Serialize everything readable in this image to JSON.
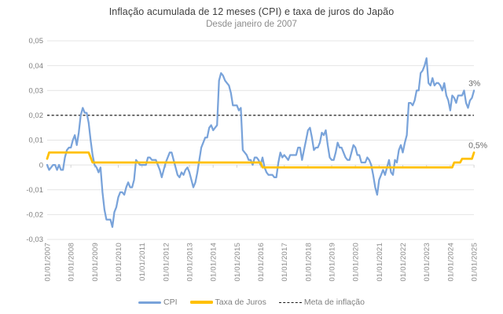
{
  "header": {
    "title": "Inflação acumulada de 12 meses (CPI) e taxa de juros do Japão",
    "subtitle": "Desde janeiro de 2007"
  },
  "chart_data": {
    "type": "line",
    "title": "Inflação acumulada de 12 meses (CPI) e taxa de juros do Japão",
    "subtitle": "Desde janeiro de 2007",
    "grid": true,
    "legend_position": "bottom",
    "ylim": [
      -0.03,
      0.05
    ],
    "y_ticks": [
      0.05,
      0.04,
      0.03,
      0.02,
      0.01,
      0,
      -0.01,
      -0.02,
      -0.03
    ],
    "y_tick_labels": [
      "0,05",
      "0,04",
      "0,03",
      "0,02",
      "0,01",
      "0",
      "-0,01",
      "-0,02",
      "-0,03"
    ],
    "x_tick_labels": [
      "01/01/2007",
      "01/01/2008",
      "01/01/2009",
      "01/01/2010",
      "01/01/2011",
      "01/01/2012",
      "01/01/2013",
      "01/01/2014",
      "01/01/2015",
      "01/01/2016",
      "01/01/2017",
      "01/01/2018",
      "01/01/2019",
      "01/01/2020",
      "01/01/2021",
      "01/01/2022",
      "01/01/2023",
      "01/01/2024",
      "01/01/2025"
    ],
    "x_start_month": "01/2007",
    "x_end_month": "01/2025",
    "colors": {
      "cpi": "#79A3DA",
      "rate": "#FFC000",
      "meta": "#1a1a1a",
      "gridline": "#e4e4e4",
      "tick_mark": "#d2d2d2"
    },
    "series": [
      {
        "name": "CPI",
        "color": "#79A3DA",
        "width": 2.25,
        "values": [
          0,
          -0.002,
          -0.001,
          0,
          0,
          -0.002,
          0,
          -0.002,
          -0.002,
          0.003,
          0.006,
          0.007,
          0.007,
          0.01,
          0.012,
          0.008,
          0.013,
          0.02,
          0.023,
          0.021,
          0.021,
          0.017,
          0.01,
          0.004,
          0,
          -0.001,
          -0.003,
          -0.001,
          -0.011,
          -0.018,
          -0.022,
          -0.022,
          -0.022,
          -0.025,
          -0.019,
          -0.017,
          -0.013,
          -0.011,
          -0.011,
          -0.012,
          -0.009,
          -0.007,
          -0.009,
          -0.009,
          -0.006,
          0.002,
          0.001,
          0,
          0,
          0,
          0,
          0.003,
          0.003,
          0.002,
          0.002,
          0.002,
          0,
          -0.002,
          -0.005,
          -0.002,
          0.001,
          0.003,
          0.005,
          0.005,
          0.002,
          -0.001,
          -0.004,
          -0.005,
          -0.003,
          -0.004,
          -0.002,
          -0.001,
          -0.003,
          -0.006,
          -0.009,
          -0.007,
          -0.003,
          0.002,
          0.007,
          0.009,
          0.011,
          0.011,
          0.015,
          0.016,
          0.014,
          0.015,
          0.016,
          0.034,
          0.037,
          0.036,
          0.034,
          0.033,
          0.032,
          0.029,
          0.024,
          0.024,
          0.024,
          0.022,
          0.023,
          0.006,
          0.005,
          0.004,
          0.002,
          0.002,
          0,
          0.003,
          0.003,
          0.002,
          0,
          0.003,
          -0.001,
          -0.003,
          -0.004,
          -0.004,
          -0.004,
          -0.005,
          -0.005,
          0.001,
          0.005,
          0.003,
          0.004,
          0.003,
          0.002,
          0.004,
          0.004,
          0.004,
          0.004,
          0.007,
          0.007,
          0.002,
          0.006,
          0.01,
          0.014,
          0.015,
          0.011,
          0.006,
          0.007,
          0.007,
          0.009,
          0.013,
          0.012,
          0.014,
          0.008,
          0.003,
          0.002,
          0.002,
          0.005,
          0.009,
          0.007,
          0.007,
          0.005,
          0.003,
          0.002,
          0.002,
          0.005,
          0.008,
          0.007,
          0.004,
          0.004,
          0.001,
          0.001,
          0.001,
          0.003,
          0.002,
          0,
          -0.004,
          -0.009,
          -0.012,
          -0.006,
          -0.004,
          -0.002,
          -0.004,
          -0.001,
          0.002,
          -0.003,
          -0.004,
          0.002,
          0.001,
          0.006,
          0.008,
          0.005,
          0.009,
          0.012,
          0.025,
          0.025,
          0.024,
          0.026,
          0.03,
          0.03,
          0.037,
          0.038,
          0.04,
          0.043,
          0.033,
          0.032,
          0.035,
          0.032,
          0.033,
          0.033,
          0.032,
          0.03,
          0.033,
          0.028,
          0.026,
          0.022,
          0.028,
          0.027,
          0.025,
          0.028,
          0.028,
          0.028,
          0.03,
          0.025,
          0.023,
          0.026,
          0.027,
          0.03
        ]
      },
      {
        "name": "Taxa de Juros",
        "color": "#FFC000",
        "width": 2.75,
        "values": [
          0.0025,
          0.005,
          0.005,
          0.005,
          0.005,
          0.005,
          0.005,
          0.005,
          0.005,
          0.005,
          0.005,
          0.005,
          0.005,
          0.005,
          0.005,
          0.005,
          0.005,
          0.005,
          0.005,
          0.005,
          0.005,
          0.005,
          0.003,
          0.001,
          0.001,
          0.001,
          0.001,
          0.001,
          0.001,
          0.001,
          0.001,
          0.001,
          0.001,
          0.001,
          0.001,
          0.001,
          0.001,
          0.001,
          0.001,
          0.001,
          0.001,
          0.001,
          0.001,
          0.001,
          0.001,
          0.001,
          0.001,
          0.001,
          0.001,
          0.001,
          0.001,
          0.001,
          0.001,
          0.001,
          0.001,
          0.001,
          0.001,
          0.001,
          0.001,
          0.001,
          0.001,
          0.001,
          0.001,
          0.001,
          0.001,
          0.001,
          0.001,
          0.001,
          0.001,
          0.001,
          0.001,
          0.001,
          0.001,
          0.001,
          0.001,
          0.001,
          0.001,
          0.001,
          0.001,
          0.001,
          0.001,
          0.001,
          0.001,
          0.001,
          0.001,
          0.001,
          0.001,
          0.001,
          0.001,
          0.001,
          0.001,
          0.001,
          0.001,
          0.001,
          0.001,
          0.001,
          0.001,
          0.001,
          0.001,
          0.001,
          0.001,
          0.001,
          0.001,
          0.001,
          0.001,
          0.001,
          0.001,
          0.001,
          0.001,
          -0.001,
          -0.001,
          -0.001,
          -0.001,
          -0.001,
          -0.001,
          -0.001,
          -0.001,
          -0.001,
          -0.001,
          -0.001,
          -0.001,
          -0.001,
          -0.001,
          -0.001,
          -0.001,
          -0.001,
          -0.001,
          -0.001,
          -0.001,
          -0.001,
          -0.001,
          -0.001,
          -0.001,
          -0.001,
          -0.001,
          -0.001,
          -0.001,
          -0.001,
          -0.001,
          -0.001,
          -0.001,
          -0.001,
          -0.001,
          -0.001,
          -0.001,
          -0.001,
          -0.001,
          -0.001,
          -0.001,
          -0.001,
          -0.001,
          -0.001,
          -0.001,
          -0.001,
          -0.001,
          -0.001,
          -0.001,
          -0.001,
          -0.001,
          -0.001,
          -0.001,
          -0.001,
          -0.001,
          -0.001,
          -0.001,
          -0.001,
          -0.001,
          -0.001,
          -0.001,
          -0.001,
          -0.001,
          -0.001,
          -0.001,
          -0.001,
          -0.001,
          -0.001,
          -0.001,
          -0.001,
          -0.001,
          -0.001,
          -0.001,
          -0.001,
          -0.001,
          -0.001,
          -0.001,
          -0.001,
          -0.001,
          -0.001,
          -0.001,
          -0.001,
          -0.001,
          -0.001,
          -0.001,
          -0.001,
          -0.001,
          -0.001,
          -0.001,
          -0.001,
          -0.001,
          -0.001,
          -0.001,
          -0.001,
          -0.001,
          -0.001,
          -0.001,
          -0.001,
          0.001,
          0.001,
          0.001,
          0.001,
          0.0025,
          0.0025,
          0.0025,
          0.0025,
          0.0025,
          0.0025,
          0.005
        ]
      }
    ],
    "reference_line": {
      "name": "Meta de inflação",
      "value": 0.02,
      "color": "#1a1a1a",
      "style": "dashed"
    },
    "annotations": [
      {
        "text": "3%",
        "series": "CPI"
      },
      {
        "text": "0,5%",
        "series": "Taxa de Juros"
      }
    ],
    "legend": [
      "CPI",
      "Taxa de Juros",
      "Meta de inflação"
    ]
  }
}
